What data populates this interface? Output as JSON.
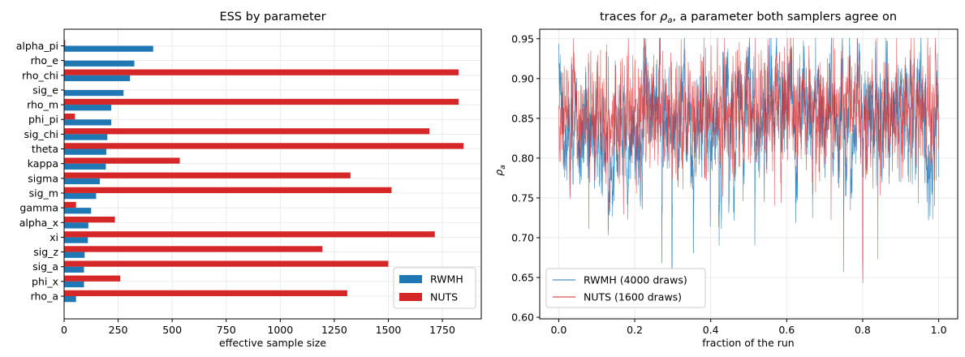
{
  "chart_data": [
    {
      "type": "bar",
      "orientation": "horizontal",
      "title": "ESS by parameter",
      "xlabel": "effective sample size",
      "ylabel": "",
      "xlim": [
        0,
        1930
      ],
      "xticks": [
        0,
        250,
        500,
        750,
        1000,
        1250,
        1500,
        1750
      ],
      "categories": [
        "alpha_pi",
        "rho_e",
        "rho_chi",
        "sig_e",
        "rho_m",
        "phi_pi",
        "sig_chi",
        "theta",
        "kappa",
        "sigma",
        "sig_m",
        "gamma",
        "alpha_x",
        "xi",
        "sig_z",
        "sig_a",
        "phi_x",
        "rho_a"
      ],
      "series": [
        {
          "name": "RWMH",
          "color": "#1f77b4",
          "values": [
            412,
            325,
            305,
            275,
            218,
            218,
            200,
            195,
            193,
            165,
            148,
            125,
            112,
            110,
            95,
            92,
            92,
            55
          ]
        },
        {
          "name": "NUTS",
          "color": "#d62728",
          "values": [
            5,
            0,
            1825,
            0,
            1825,
            50,
            1690,
            1848,
            535,
            1325,
            1515,
            55,
            235,
            1715,
            1195,
            1500,
            260,
            1310
          ]
        }
      ],
      "grid": true,
      "legend": "lower right"
    },
    {
      "type": "line",
      "title_prefix": "traces for ",
      "title_symbol": "ρ",
      "title_subscript": "a",
      "title_suffix": ", a parameter both samplers agree on",
      "xlabel": "fraction of the run",
      "ylabel_symbol": "ρ",
      "ylabel_subscript": "a",
      "xlim": [
        -0.05,
        1.05
      ],
      "ylim": [
        0.598,
        0.962
      ],
      "xticks": [
        0.0,
        0.2,
        0.4,
        0.6,
        0.8,
        1.0
      ],
      "yticks": [
        0.6,
        0.65,
        0.7,
        0.75,
        0.8,
        0.85,
        0.9,
        0.95
      ],
      "series": [
        {
          "name": "RWMH (4000 draws)",
          "color": "#1f77b4",
          "draws": 4000,
          "mean": 0.855,
          "sd": 0.045,
          "min": 0.657,
          "max": 0.951
        },
        {
          "name": "NUTS (1600 draws)",
          "color": "#d62728",
          "draws": 1600,
          "mean": 0.858,
          "sd": 0.04,
          "min": 0.614,
          "max": 0.951
        }
      ],
      "grid": true,
      "legend": "lower left"
    }
  ]
}
